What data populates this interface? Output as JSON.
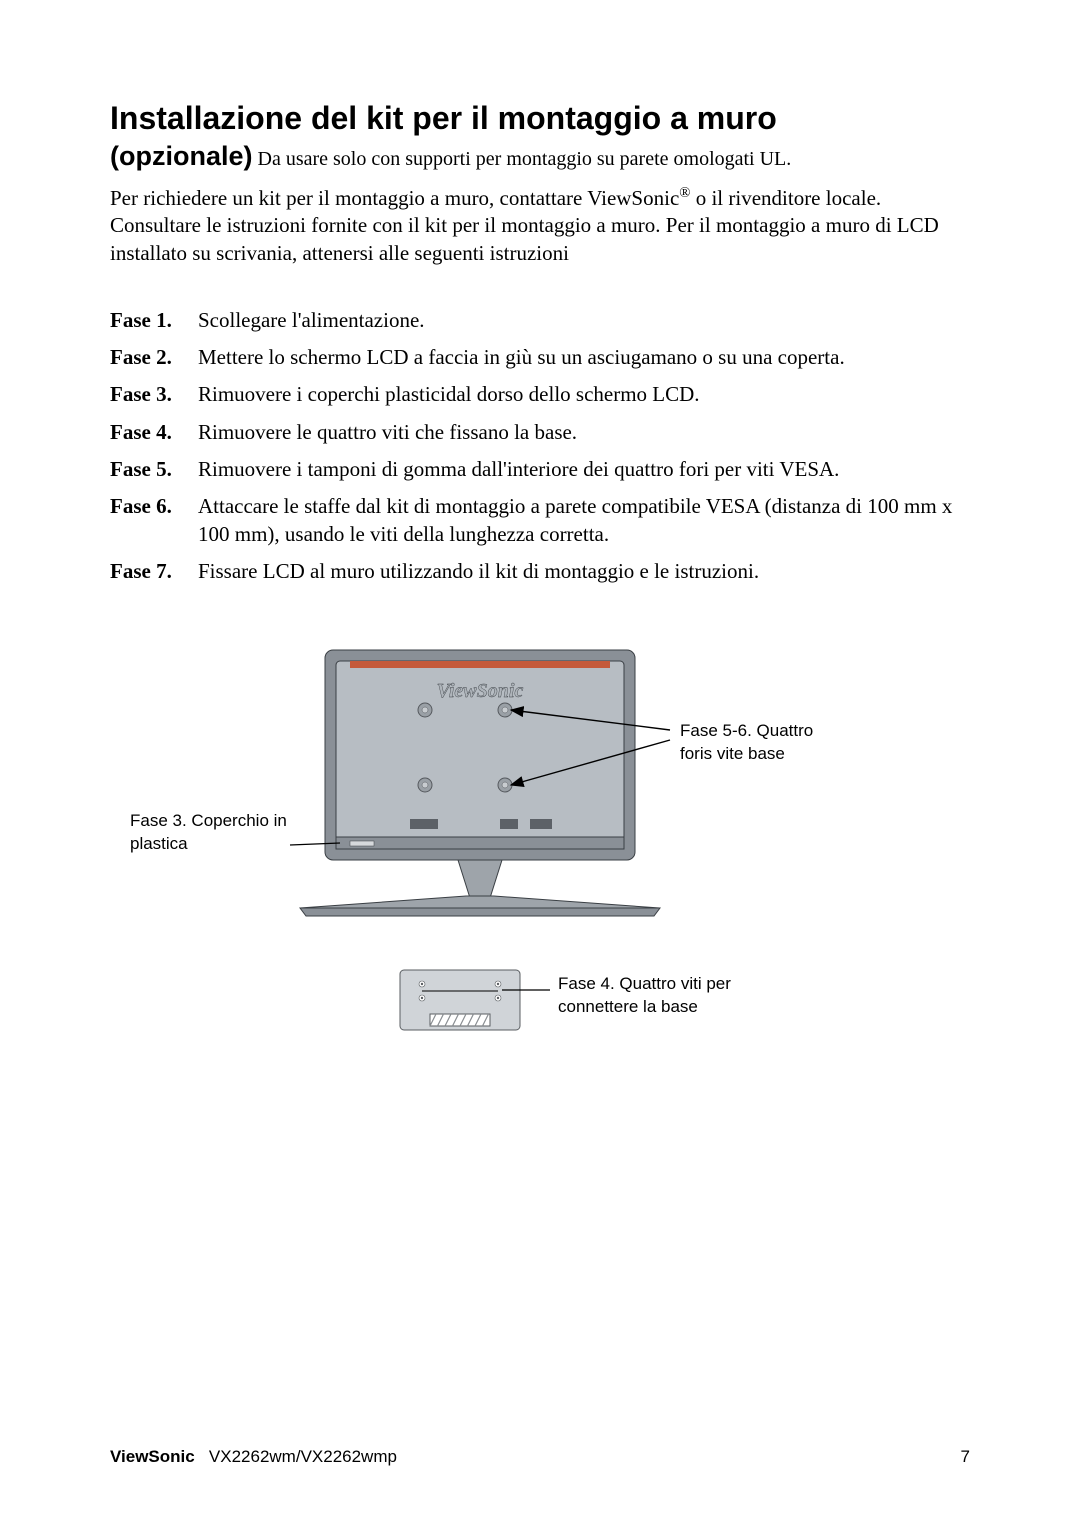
{
  "title": "Installazione del kit per il montaggio a muro",
  "subtitle": "(opzionale)",
  "subtitle_note": " Da usare solo con supporti per montaggio su parete omologati UL.",
  "intro_pre": "Per richiedere un kit per il montaggio a muro, contattare ViewSonic",
  "intro_reg": "®",
  "intro_post": " o il rivenditore locale. Consultare le istruzioni fornite con il kit per il montaggio a muro. Per il montaggio a muro di LCD installato su scrivania, attenersi alle seguenti istruzioni",
  "steps": [
    {
      "label": "Fase 1.",
      "text": "Scollegare l'alimentazione."
    },
    {
      "label": "Fase 2.",
      "text": "Mettere lo schermo LCD a faccia in giù su un asciugamano o su una coperta."
    },
    {
      "label": "Fase 3.",
      "text": "Rimuovere i coperchi plasticidal dorso dello schermo LCD."
    },
    {
      "label": "Fase 4.",
      "text": "Rimuovere le quattro viti che fissano la base."
    },
    {
      "label": "Fase 5.",
      "text": "Rimuovere i tamponi di gomma dall'interiore dei quattro fori per viti VESA."
    },
    {
      "label": "Fase 6.",
      "text": "Attaccare le staffe dal kit di montaggio a parete compatibile VESA (distanza di 100 mm x 100 mm), usando le viti della lunghezza corretta."
    },
    {
      "label": "Fase 7.",
      "text": "Fissare LCD al muro utilizzando il kit di montaggio e le istruzioni."
    }
  ],
  "callouts": {
    "left": "Fase 3. Coperchio in plastica",
    "right_top": "Fase 5-6. Quattro foris vite base",
    "right_bottom": "Fase 4. Quattro viti per connettere la base"
  },
  "diagram": {
    "monitor_body_fill": "#8a9097",
    "monitor_body_stroke": "#3a3f44",
    "screen_fill": "#b7bdc3",
    "vent_color": "#c45a3a",
    "logo_text": "ViewSonic",
    "logo_fill": "#aeb4ba",
    "screw_fill": "#9aa0a6",
    "screw_stroke": "#55595e",
    "base_plate_fill": "#d0d4d8",
    "base_plate_stroke": "#5a5e62",
    "hatch_fill": "#888c90",
    "arrow_color": "#000000",
    "stand_fill": "#9ea4aa"
  },
  "footer": {
    "brand": "ViewSonic",
    "model": "VX2262wm/VX2262wmp",
    "page": "7"
  }
}
